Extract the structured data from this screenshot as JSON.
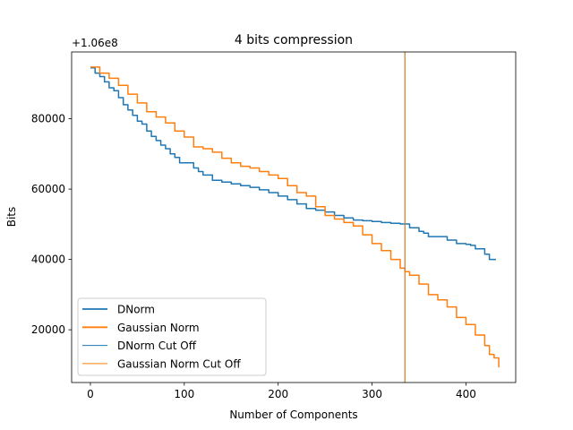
{
  "chart_data": {
    "type": "line",
    "title": "4 bits compression",
    "xlabel": "Number of Components",
    "ylabel": "Bits",
    "y_offset_text": "+1.06e8",
    "xlim": [
      -20,
      453
    ],
    "ylim": [
      5000,
      99000
    ],
    "xticks": [
      0,
      100,
      200,
      300,
      400
    ],
    "yticks": [
      20000,
      40000,
      60000,
      80000
    ],
    "ytick_labels": [
      "20000",
      "40000",
      "60000",
      "80000"
    ],
    "legend_position": "lower-left",
    "cutoff_x": 335,
    "series": [
      {
        "name": "DNorm",
        "color": "#1f77b4",
        "points": [
          [
            0,
            94500
          ],
          [
            5,
            93000
          ],
          [
            10,
            92000
          ],
          [
            15,
            90500
          ],
          [
            20,
            88800
          ],
          [
            25,
            88000
          ],
          [
            30,
            86000
          ],
          [
            35,
            84000
          ],
          [
            40,
            82500
          ],
          [
            45,
            81000
          ],
          [
            50,
            79300
          ],
          [
            55,
            78500
          ],
          [
            60,
            76500
          ],
          [
            65,
            75000
          ],
          [
            70,
            73800
          ],
          [
            75,
            72500
          ],
          [
            80,
            71500
          ],
          [
            85,
            70000
          ],
          [
            90,
            69000
          ],
          [
            95,
            67500
          ],
          [
            100,
            67500
          ],
          [
            110,
            66000
          ],
          [
            115,
            65000
          ],
          [
            120,
            64000
          ],
          [
            130,
            62500
          ],
          [
            140,
            62000
          ],
          [
            150,
            61500
          ],
          [
            160,
            61000
          ],
          [
            170,
            60500
          ],
          [
            180,
            59800
          ],
          [
            190,
            59000
          ],
          [
            200,
            58000
          ],
          [
            210,
            57000
          ],
          [
            220,
            55800
          ],
          [
            230,
            54500
          ],
          [
            240,
            54000
          ],
          [
            250,
            53500
          ],
          [
            260,
            52500
          ],
          [
            270,
            51800
          ],
          [
            280,
            51200
          ],
          [
            290,
            51000
          ],
          [
            300,
            50800
          ],
          [
            310,
            50500
          ],
          [
            320,
            50300
          ],
          [
            330,
            50100
          ],
          [
            340,
            49000
          ],
          [
            350,
            48000
          ],
          [
            355,
            47500
          ],
          [
            360,
            46500
          ],
          [
            370,
            46500
          ],
          [
            380,
            45500
          ],
          [
            390,
            44500
          ],
          [
            400,
            44300
          ],
          [
            405,
            44000
          ],
          [
            410,
            43000
          ],
          [
            420,
            41500
          ],
          [
            425,
            40000
          ],
          [
            432,
            40000
          ]
        ]
      },
      {
        "name": "Gaussian Norm",
        "color": "#ff7f0e",
        "points": [
          [
            0,
            94700
          ],
          [
            10,
            93000
          ],
          [
            20,
            91500
          ],
          [
            30,
            89500
          ],
          [
            40,
            87000
          ],
          [
            50,
            84500
          ],
          [
            60,
            82000
          ],
          [
            70,
            80500
          ],
          [
            80,
            78800
          ],
          [
            90,
            76500
          ],
          [
            100,
            74800
          ],
          [
            110,
            72000
          ],
          [
            120,
            71500
          ],
          [
            130,
            70500
          ],
          [
            140,
            68800
          ],
          [
            150,
            67500
          ],
          [
            160,
            66500
          ],
          [
            170,
            66000
          ],
          [
            180,
            65000
          ],
          [
            190,
            64000
          ],
          [
            200,
            63000
          ],
          [
            210,
            61000
          ],
          [
            220,
            59000
          ],
          [
            230,
            58000
          ],
          [
            240,
            55000
          ],
          [
            250,
            52500
          ],
          [
            260,
            51500
          ],
          [
            270,
            50500
          ],
          [
            280,
            49500
          ],
          [
            290,
            47000
          ],
          [
            300,
            44500
          ],
          [
            310,
            42500
          ],
          [
            320,
            40000
          ],
          [
            330,
            37500
          ],
          [
            335,
            36500
          ],
          [
            340,
            35500
          ],
          [
            350,
            33000
          ],
          [
            360,
            30000
          ],
          [
            370,
            28500
          ],
          [
            380,
            26500
          ],
          [
            390,
            23500
          ],
          [
            400,
            21500
          ],
          [
            410,
            18500
          ],
          [
            420,
            15500
          ],
          [
            425,
            13000
          ],
          [
            430,
            12000
          ],
          [
            435,
            9300
          ]
        ]
      }
    ],
    "legend": [
      {
        "label": "DNorm",
        "color": "#1f77b4",
        "style": "thick"
      },
      {
        "label": "Gaussian Norm",
        "color": "#ff7f0e",
        "style": "thick"
      },
      {
        "label": "DNorm Cut Off",
        "color": "#1f77b4",
        "style": "thin"
      },
      {
        "label": "Gaussian Norm Cut Off",
        "color": "#ff7f0e",
        "style": "thin"
      }
    ]
  }
}
